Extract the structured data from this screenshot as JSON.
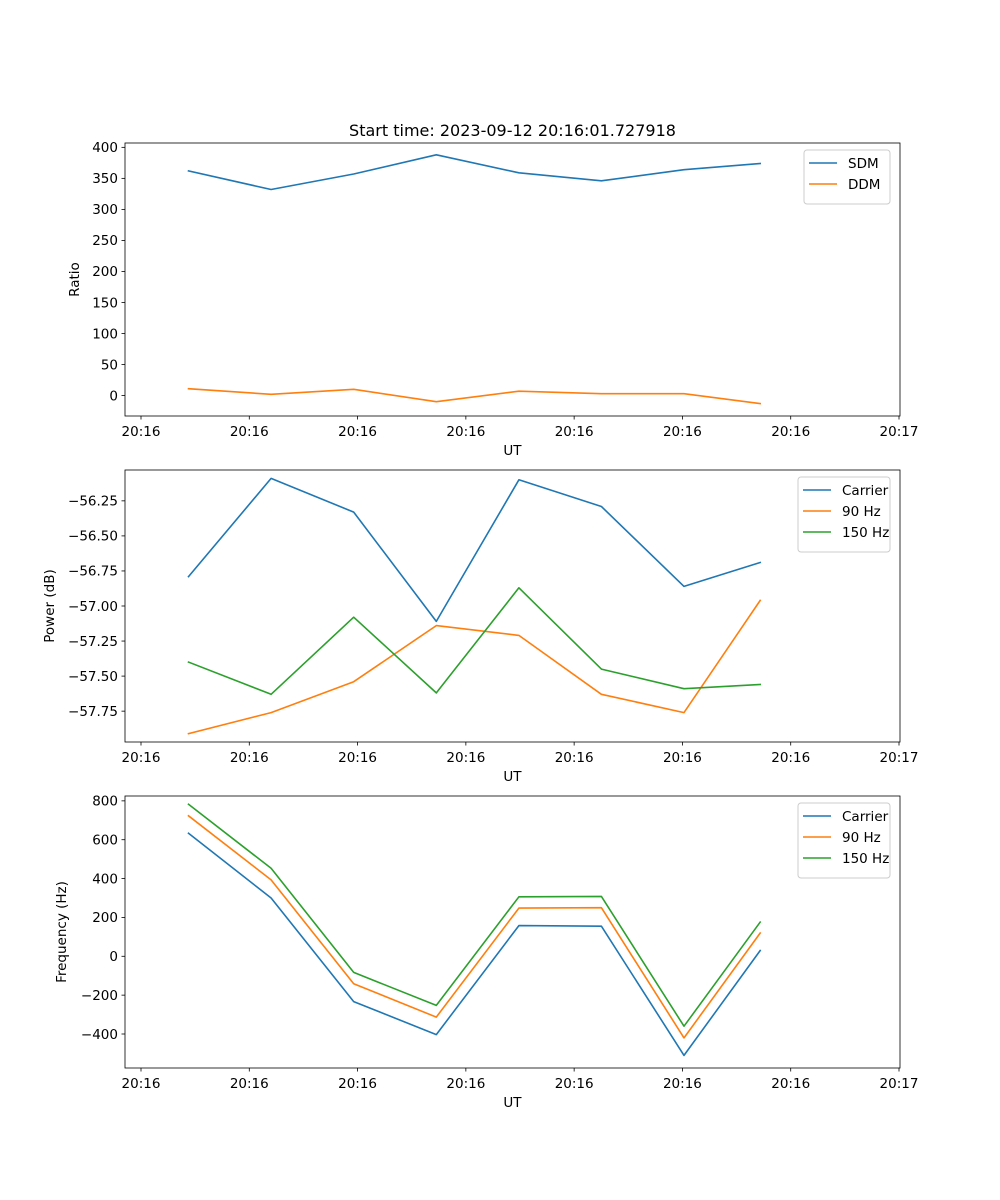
{
  "chart_data": [
    {
      "type": "line",
      "title": "Start time: 2023-09-12 20:16:01.727918",
      "xlabel": "UT",
      "ylabel": "Ratio",
      "x_ticks": [
        "20:16",
        "20:16",
        "20:16",
        "20:16",
        "20:16",
        "20:16",
        "20:16"
      ],
      "x_tick_end": "20:17",
      "xlim": [
        0,
        6.1
      ],
      "ylim": [
        -33,
        407
      ],
      "y_ticks": [
        0,
        50,
        100,
        150,
        200,
        250,
        300,
        350,
        400
      ],
      "y_tick_labels": [
        "0",
        "50",
        "100",
        "150",
        "200",
        "250",
        "300",
        "350",
        "400"
      ],
      "x": [
        0.5,
        1.15,
        1.8,
        2.45,
        3.1,
        3.75,
        4.4,
        5.0
      ],
      "series": [
        {
          "name": "SDM",
          "color": "#1f77b4",
          "values": [
            362,
            332,
            357,
            388,
            359,
            346,
            364,
            374
          ]
        },
        {
          "name": "DDM",
          "color": "#ff7f0e",
          "values": [
            11,
            2,
            10,
            -10,
            7,
            3,
            3,
            -13
          ]
        }
      ],
      "legend": "top-right"
    },
    {
      "type": "line",
      "title": "",
      "xlabel": "UT",
      "ylabel": "Power (dB)",
      "x_ticks": [
        "20:16",
        "20:16",
        "20:16",
        "20:16",
        "20:16",
        "20:16",
        "20:16"
      ],
      "x_tick_end": "20:17",
      "xlim": [
        0,
        6.1
      ],
      "ylim": [
        -57.97,
        -56.03
      ],
      "y_ticks": [
        -57.75,
        -57.5,
        -57.25,
        -57.0,
        -56.75,
        -56.5,
        -56.25
      ],
      "y_tick_labels": [
        "−57.75",
        "−57.50",
        "−57.25",
        "−57.00",
        "−56.75",
        "−56.50",
        "−56.25"
      ],
      "x": [
        0.5,
        1.15,
        1.8,
        2.45,
        3.1,
        3.75,
        4.4,
        5.0
      ],
      "series": [
        {
          "name": "Carrier",
          "color": "#1f77b4",
          "values": [
            -56.79,
            -56.09,
            -56.33,
            -57.11,
            -56.1,
            -56.29,
            -56.86,
            -56.69
          ]
        },
        {
          "name": "90 Hz",
          "color": "#ff7f0e",
          "values": [
            -57.91,
            -57.76,
            -57.54,
            -57.14,
            -57.21,
            -57.63,
            -57.76,
            -56.96
          ]
        },
        {
          "name": "150 Hz",
          "color": "#2ca02c",
          "values": [
            -57.4,
            -57.63,
            -57.08,
            -57.62,
            -56.87,
            -57.45,
            -57.59,
            -57.56
          ]
        }
      ],
      "legend": "top-right"
    },
    {
      "type": "line",
      "title": "",
      "xlabel": "UT",
      "ylabel": "Frequency (Hz)",
      "x_ticks": [
        "20:16",
        "20:16",
        "20:16",
        "20:16",
        "20:16",
        "20:16",
        "20:16"
      ],
      "x_tick_end": "20:17",
      "xlim": [
        0,
        6.1
      ],
      "ylim": [
        -575,
        825
      ],
      "y_ticks": [
        -400,
        -200,
        0,
        200,
        400,
        600,
        800
      ],
      "y_tick_labels": [
        "−400",
        "−200",
        "0",
        "200",
        "400",
        "600",
        "800"
      ],
      "x": [
        0.5,
        1.15,
        1.8,
        2.45,
        3.1,
        3.75,
        4.4,
        5.0
      ],
      "series": [
        {
          "name": "Carrier",
          "color": "#1f77b4",
          "values": [
            633,
            300,
            -233,
            -403,
            158,
            155,
            -510,
            30
          ]
        },
        {
          "name": "90 Hz",
          "color": "#ff7f0e",
          "values": [
            723,
            393,
            -141,
            -313,
            248,
            250,
            -420,
            120
          ]
        },
        {
          "name": "150 Hz",
          "color": "#2ca02c",
          "values": [
            783,
            453,
            -83,
            -253,
            306,
            308,
            -360,
            176
          ]
        }
      ],
      "legend": "top-right"
    }
  ]
}
